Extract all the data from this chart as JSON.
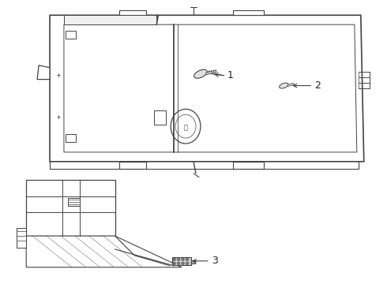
{
  "bg_color": "#ffffff",
  "lc": "#444444",
  "lw": 0.9,
  "label1": "1",
  "label2": "2",
  "label3": "3"
}
